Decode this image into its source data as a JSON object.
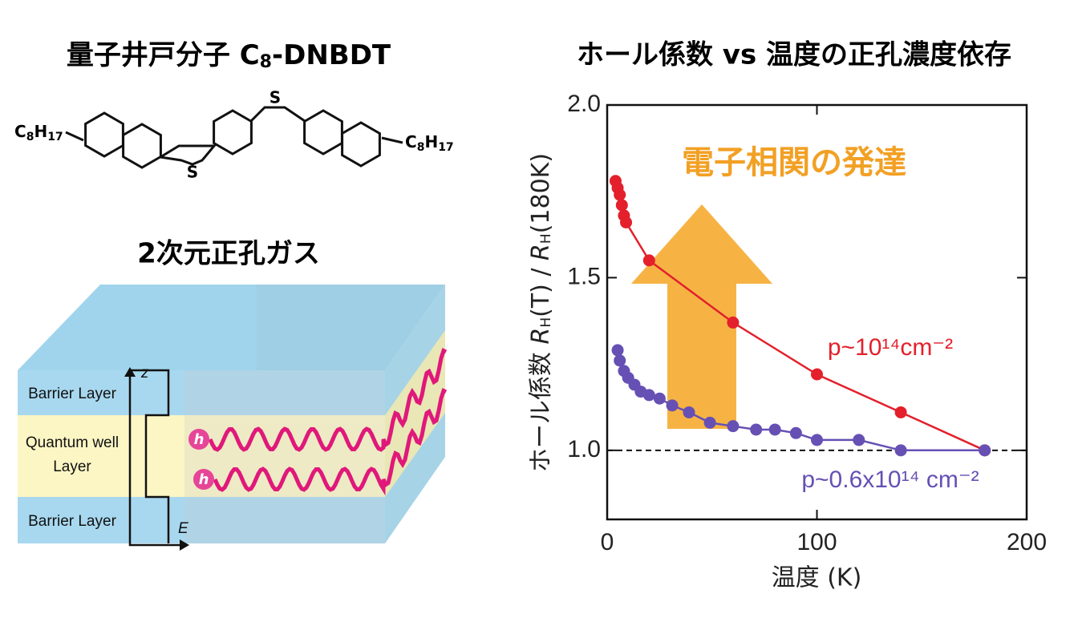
{
  "diagram": {
    "left_title": [
      "量子井戸分子 C",
      "8",
      "-DNBDT"
    ],
    "substituent_left": [
      "C",
      "8",
      "H",
      "17"
    ],
    "substituent_right": [
      "C",
      "8",
      "H",
      "17"
    ],
    "sulfur_top": "S",
    "sulfur_bottom": "S",
    "gas_title": "2次元正孔ガス",
    "barrier_top": "Barrier Layer",
    "well": [
      "Quantum well",
      "Layer"
    ],
    "barrier_bottom": "Barrier Layer",
    "axis_z": "z",
    "axis_e": "E",
    "hole_1": "h",
    "hole_2": "h"
  },
  "chart_data": {
    "type": "line",
    "title": "ホール係数 vs 温度の正孔濃度依存",
    "ylabel": [
      "ホール係数  ",
      "R",
      "H",
      "(T) / ",
      "R",
      "H",
      "(180K)"
    ],
    "xlabel": "温度 (K)",
    "annotation": "電子相関の発達",
    "reference_line": 1,
    "xlim": [
      0,
      200
    ],
    "xticks": [
      0,
      100,
      200
    ],
    "ylim": [
      0.8,
      2.0
    ],
    "yticks": [
      {
        "value": 1,
        "label": "1.0"
      },
      1.5,
      {
        "value": 2,
        "label": "2.0"
      }
    ],
    "series": [
      {
        "name": "p~10¹⁴cm⁻²",
        "color": "#e3202b",
        "x": [
          4,
          5,
          6,
          7,
          8,
          9,
          20,
          60,
          100,
          140,
          180
        ],
        "values": [
          1.78,
          1.76,
          1.74,
          1.71,
          1.68,
          1.66,
          1.55,
          1.37,
          1.22,
          1.11,
          1.0
        ]
      },
      {
        "name": "p~0.6x10¹⁴ cm⁻²",
        "color": "#6650b4",
        "x": [
          5,
          6,
          8,
          10,
          13,
          16,
          20,
          25,
          31,
          39,
          49,
          60,
          71,
          80,
          90,
          100,
          120,
          140,
          180
        ],
        "values": [
          1.29,
          1.26,
          1.23,
          1.21,
          1.19,
          1.17,
          1.16,
          1.15,
          1.13,
          1.11,
          1.08,
          1.07,
          1.06,
          1.06,
          1.05,
          1.03,
          1.03,
          1.0,
          1.0
        ]
      }
    ]
  }
}
